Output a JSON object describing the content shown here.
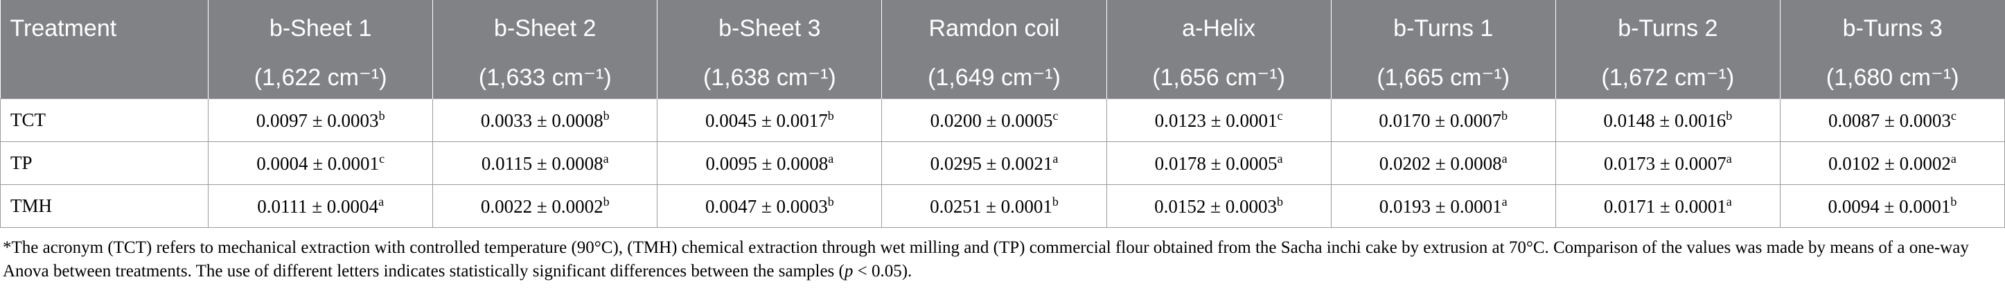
{
  "table": {
    "header_row1": [
      "Treatment",
      "b-Sheet 1",
      "b-Sheet 2",
      "b-Sheet 3",
      "Ramdon coil",
      "a-Helix",
      "b-Turns 1",
      "b-Turns 2",
      "b-Turns 3"
    ],
    "header_row2": [
      "",
      "(1,622 cm⁻¹)",
      "(1,633 cm⁻¹)",
      "(1,638 cm⁻¹)",
      "(1,649 cm⁻¹)",
      "(1,656 cm⁻¹)",
      "(1,665 cm⁻¹)",
      "(1,672 cm⁻¹)",
      "(1,680 cm⁻¹)"
    ],
    "rows": [
      {
        "label": "TCT",
        "cells": [
          {
            "v": "0.0097 ± 0.0003",
            "s": "b"
          },
          {
            "v": "0.0033 ± 0.0008",
            "s": "b"
          },
          {
            "v": "0.0045 ± 0.0017",
            "s": "b"
          },
          {
            "v": "0.0200 ± 0.0005",
            "s": "c"
          },
          {
            "v": "0.0123 ± 0.0001",
            "s": "c"
          },
          {
            "v": "0.0170 ± 0.0007",
            "s": "b"
          },
          {
            "v": "0.0148 ± 0.0016",
            "s": "b"
          },
          {
            "v": "0.0087 ± 0.0003",
            "s": "c"
          }
        ]
      },
      {
        "label": "TP",
        "cells": [
          {
            "v": "0.0004 ± 0.0001",
            "s": "c"
          },
          {
            "v": "0.0115 ± 0.0008",
            "s": "a"
          },
          {
            "v": "0.0095 ± 0.0008",
            "s": "a"
          },
          {
            "v": "0.0295 ± 0.0021",
            "s": "a"
          },
          {
            "v": "0.0178 ± 0.0005",
            "s": "a"
          },
          {
            "v": "0.0202 ± 0.0008",
            "s": "a"
          },
          {
            "v": "0.0173 ± 0.0007",
            "s": "a"
          },
          {
            "v": "0.0102 ± 0.0002",
            "s": "a"
          }
        ]
      },
      {
        "label": "TMH",
        "cells": [
          {
            "v": "0.0111 ± 0.0004",
            "s": "a"
          },
          {
            "v": "0.0022 ± 0.0002",
            "s": "b"
          },
          {
            "v": "0.0047 ± 0.0003",
            "s": "b"
          },
          {
            "v": "0.0251 ± 0.0001",
            "s": "b"
          },
          {
            "v": "0.0152 ± 0.0003",
            "s": "b"
          },
          {
            "v": "0.0193 ± 0.0001",
            "s": "a"
          },
          {
            "v": "0.0171 ± 0.0001",
            "s": "a"
          },
          {
            "v": "0.0094 ± 0.0001",
            "s": "b"
          }
        ]
      }
    ]
  },
  "footnote": {
    "text_before": "*The acronym (TCT) refers to mechanical extraction with controlled temperature (90°C), (TMH) chemical extraction through wet milling and (TP) commercial flour obtained from the Sacha inchi cake by extrusion at 70°C. Comparison of the values was made by means of a one-way Anova between treatments. The use of different letters indicates statistically significant differences between the samples (",
    "italic": "p",
    "text_after": " < 0.05)."
  },
  "colors": {
    "header_bg": "#808285",
    "header_text": "#ffffff",
    "border": "#9a9a9a"
  }
}
